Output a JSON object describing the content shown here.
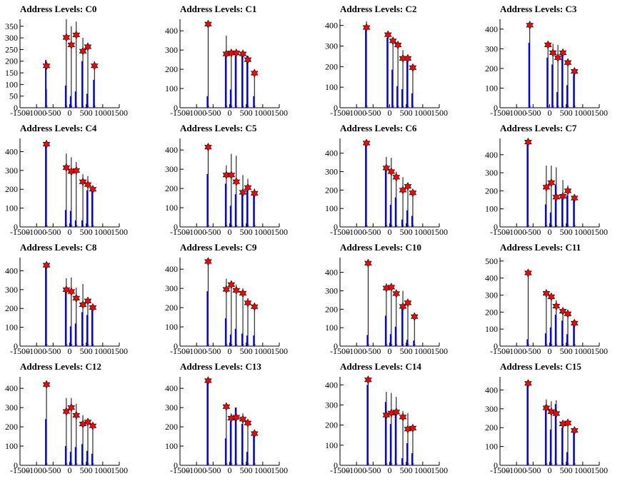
{
  "figure": {
    "x_ticks": [
      "-1500",
      "-1000",
      "-500",
      "0",
      "500",
      "1000",
      "1500"
    ],
    "colors": {
      "black_bars": "#000000",
      "blue_bars": "#0000ff",
      "marker": "#ff0000"
    }
  },
  "chart_data": [
    {
      "type": "bar",
      "title": "Address Levels: C0",
      "xlim": [
        -1500,
        1500
      ],
      "ylim": [
        0,
        380
      ],
      "y_ticks": [
        0,
        50,
        100,
        150,
        200,
        250,
        300,
        350
      ],
      "peaks": [
        -700,
        -100,
        50,
        200,
        400,
        550,
        750
      ],
      "black": [
        80,
        380,
        350,
        370,
        300,
        280,
        200
      ],
      "blue": [
        205,
        95,
        50,
        70,
        200,
        60,
        120
      ],
      "markers": [
        {
          "x": -700,
          "y": 180
        },
        {
          "x": -100,
          "y": 302
        },
        {
          "x": 50,
          "y": 270
        },
        {
          "x": 200,
          "y": 313
        },
        {
          "x": 400,
          "y": 243
        },
        {
          "x": 550,
          "y": 262
        },
        {
          "x": 750,
          "y": 180
        }
      ]
    },
    {
      "type": "bar",
      "title": "Address Levels: C1",
      "xlim": [
        -1500,
        1500
      ],
      "ylim": [
        0,
        460
      ],
      "y_ticks": [
        0,
        100,
        200,
        300,
        400
      ],
      "peaks": [
        -650,
        -100,
        50,
        200,
        400,
        550,
        750
      ],
      "black": [
        440,
        375,
        305,
        300,
        300,
        270,
        180
      ],
      "blue": [
        60,
        280,
        95,
        270,
        285,
        270,
        60
      ],
      "markers": [
        {
          "x": -650,
          "y": 435
        },
        {
          "x": -100,
          "y": 280
        },
        {
          "x": 50,
          "y": 285
        },
        {
          "x": 200,
          "y": 285
        },
        {
          "x": 400,
          "y": 280
        },
        {
          "x": 550,
          "y": 250
        },
        {
          "x": 750,
          "y": 180
        }
      ]
    },
    {
      "type": "bar",
      "title": "Address Levels: C2",
      "xlim": [
        -1500,
        1500
      ],
      "ylim": [
        0,
        430
      ],
      "y_ticks": [
        0,
        100,
        200,
        300,
        400
      ],
      "peaks": [
        -700,
        -50,
        100,
        250,
        400,
        550,
        700
      ],
      "black": [
        420,
        355,
        345,
        310,
        280,
        245,
        200
      ],
      "blue": [
        385,
        340,
        185,
        105,
        90,
        230,
        70
      ],
      "markers": [
        {
          "x": -700,
          "y": 390
        },
        {
          "x": -50,
          "y": 355
        },
        {
          "x": 100,
          "y": 325
        },
        {
          "x": 250,
          "y": 305
        },
        {
          "x": 400,
          "y": 240
        },
        {
          "x": 550,
          "y": 240
        },
        {
          "x": 700,
          "y": 195
        }
      ]
    },
    {
      "type": "bar",
      "title": "Address Levels: C3",
      "xlim": [
        -1500,
        1500
      ],
      "ylim": [
        0,
        450
      ],
      "y_ticks": [
        0,
        100,
        200,
        300,
        400
      ],
      "peaks": [
        -600,
        -50,
        100,
        250,
        400,
        550,
        750
      ],
      "black": [
        435,
        330,
        325,
        320,
        280,
        240,
        195
      ],
      "blue": [
        330,
        255,
        220,
        80,
        270,
        115,
        170
      ],
      "markers": [
        {
          "x": -600,
          "y": 420
        },
        {
          "x": -50,
          "y": 320
        },
        {
          "x": 100,
          "y": 280
        },
        {
          "x": 250,
          "y": 255
        },
        {
          "x": 400,
          "y": 280
        },
        {
          "x": 550,
          "y": 230
        },
        {
          "x": 750,
          "y": 185
        }
      ]
    },
    {
      "type": "bar",
      "title": "Address Levels: C4",
      "xlim": [
        -1500,
        1500
      ],
      "ylim": [
        0,
        470
      ],
      "y_ticks": [
        0,
        100,
        200,
        300,
        400
      ],
      "peaks": [
        -700,
        -100,
        50,
        200,
        400,
        550,
        700
      ],
      "black": [
        450,
        390,
        370,
        345,
        280,
        270,
        200
      ],
      "blue": [
        435,
        90,
        85,
        35,
        35,
        195,
        195
      ],
      "markers": [
        {
          "x": -700,
          "y": 440
        },
        {
          "x": -100,
          "y": 315
        },
        {
          "x": 50,
          "y": 295
        },
        {
          "x": 200,
          "y": 300
        },
        {
          "x": 400,
          "y": 240
        },
        {
          "x": 550,
          "y": 225
        },
        {
          "x": 700,
          "y": 200
        }
      ]
    },
    {
      "type": "bar",
      "title": "Address Levels: C5",
      "xlim": [
        -1500,
        1500
      ],
      "ylim": [
        0,
        460
      ],
      "y_ticks": [
        0,
        100,
        200,
        300,
        400
      ],
      "peaks": [
        -650,
        -100,
        50,
        200,
        400,
        550,
        750
      ],
      "black": [
        420,
        320,
        380,
        370,
        270,
        250,
        200
      ],
      "blue": [
        275,
        225,
        110,
        170,
        175,
        190,
        165
      ],
      "markers": [
        {
          "x": -650,
          "y": 415
        },
        {
          "x": -100,
          "y": 270
        },
        {
          "x": 50,
          "y": 270
        },
        {
          "x": 200,
          "y": 235
        },
        {
          "x": 400,
          "y": 180
        },
        {
          "x": 550,
          "y": 205
        },
        {
          "x": 750,
          "y": 175
        }
      ]
    },
    {
      "type": "bar",
      "title": "Address Levels: C6",
      "xlim": [
        -1500,
        1500
      ],
      "ylim": [
        0,
        480
      ],
      "y_ticks": [
        0,
        100,
        200,
        300,
        400
      ],
      "peaks": [
        -700,
        -100,
        50,
        200,
        400,
        550,
        700
      ],
      "black": [
        460,
        380,
        375,
        300,
        270,
        230,
        190
      ],
      "blue": [
        455,
        330,
        120,
        160,
        40,
        90,
        60
      ],
      "markers": [
        {
          "x": -700,
          "y": 455
        },
        {
          "x": -100,
          "y": 320
        },
        {
          "x": 50,
          "y": 300
        },
        {
          "x": 200,
          "y": 270
        },
        {
          "x": 400,
          "y": 200
        },
        {
          "x": 550,
          "y": 220
        },
        {
          "x": 700,
          "y": 185
        }
      ]
    },
    {
      "type": "bar",
      "title": "Address Levels: C7",
      "xlim": [
        -1500,
        1500
      ],
      "ylim": [
        0,
        490
      ],
      "y_ticks": [
        0,
        100,
        200,
        300,
        400
      ],
      "peaks": [
        -650,
        -100,
        50,
        200,
        400,
        550,
        750
      ],
      "black": [
        480,
        340,
        340,
        330,
        260,
        230,
        175
      ],
      "blue": [
        465,
        125,
        80,
        235,
        175,
        175,
        165
      ],
      "markers": [
        {
          "x": -650,
          "y": 470
        },
        {
          "x": -100,
          "y": 220
        },
        {
          "x": 50,
          "y": 245
        },
        {
          "x": 200,
          "y": 165
        },
        {
          "x": 400,
          "y": 170
        },
        {
          "x": 550,
          "y": 200
        },
        {
          "x": 750,
          "y": 160
        }
      ]
    },
    {
      "type": "bar",
      "title": "Address Levels: C8",
      "xlim": [
        -1500,
        1500
      ],
      "ylim": [
        0,
        470
      ],
      "y_ticks": [
        0,
        100,
        200,
        300,
        400
      ],
      "peaks": [
        -700,
        -100,
        50,
        200,
        400,
        550,
        700
      ],
      "black": [
        440,
        360,
        365,
        310,
        330,
        260,
        210
      ],
      "blue": [
        430,
        300,
        105,
        120,
        180,
        165,
        210
      ],
      "markers": [
        {
          "x": -700,
          "y": 430
        },
        {
          "x": -100,
          "y": 300
        },
        {
          "x": 50,
          "y": 290
        },
        {
          "x": 200,
          "y": 255
        },
        {
          "x": 400,
          "y": 220
        },
        {
          "x": 550,
          "y": 240
        },
        {
          "x": 700,
          "y": 205
        }
      ]
    },
    {
      "type": "bar",
      "title": "Address Levels: C9",
      "xlim": [
        -1500,
        1500
      ],
      "ylim": [
        0,
        460
      ],
      "y_ticks": [
        0,
        100,
        200,
        300,
        400
      ],
      "peaks": [
        -650,
        -100,
        50,
        200,
        400,
        550,
        750
      ],
      "black": [
        440,
        350,
        340,
        320,
        300,
        250,
        220
      ],
      "blue": [
        285,
        145,
        60,
        90,
        65,
        55,
        55
      ],
      "markers": [
        {
          "x": -650,
          "y": 440
        },
        {
          "x": -100,
          "y": 295
        },
        {
          "x": 50,
          "y": 320
        },
        {
          "x": 200,
          "y": 290
        },
        {
          "x": 400,
          "y": 275
        },
        {
          "x": 550,
          "y": 225
        },
        {
          "x": 750,
          "y": 205
        }
      ]
    },
    {
      "type": "bar",
      "title": "Address Levels: C10",
      "xlim": [
        -1500,
        1500
      ],
      "ylim": [
        0,
        480
      ],
      "y_ticks": [
        0,
        100,
        200,
        300,
        400
      ],
      "peaks": [
        -650,
        -100,
        50,
        200,
        400,
        550,
        750
      ],
      "black": [
        460,
        340,
        330,
        300,
        300,
        250,
        170
      ],
      "blue": [
        60,
        165,
        65,
        105,
        210,
        35,
        30
      ],
      "markers": [
        {
          "x": -650,
          "y": 450
        },
        {
          "x": -100,
          "y": 315
        },
        {
          "x": 50,
          "y": 320
        },
        {
          "x": 200,
          "y": 285
        },
        {
          "x": 400,
          "y": 215
        },
        {
          "x": 550,
          "y": 235
        },
        {
          "x": 750,
          "y": 160
        }
      ]
    },
    {
      "type": "bar",
      "title": "Address Levels: C11",
      "xlim": [
        -1500,
        1500
      ],
      "ylim": [
        0,
        520
      ],
      "y_ticks": [
        0,
        100,
        200,
        300,
        400,
        500
      ],
      "peaks": [
        -650,
        -100,
        50,
        200,
        400,
        550,
        750
      ],
      "black": [
        450,
        330,
        300,
        270,
        210,
        200,
        155
      ],
      "blue": [
        40,
        75,
        110,
        185,
        150,
        70,
        150
      ],
      "markers": [
        {
          "x": -650,
          "y": 430
        },
        {
          "x": -100,
          "y": 310
        },
        {
          "x": 50,
          "y": 290
        },
        {
          "x": 200,
          "y": 235
        },
        {
          "x": 400,
          "y": 205
        },
        {
          "x": 550,
          "y": 190
        },
        {
          "x": 750,
          "y": 135
        }
      ]
    },
    {
      "type": "bar",
      "title": "Address Levels: C12",
      "xlim": [
        -1500,
        1500
      ],
      "ylim": [
        0,
        460
      ],
      "y_ticks": [
        0,
        100,
        200,
        300,
        400
      ],
      "peaks": [
        -700,
        -100,
        50,
        200,
        400,
        550,
        700
      ],
      "black": [
        440,
        350,
        350,
        320,
        260,
        240,
        210
      ],
      "blue": [
        240,
        100,
        70,
        95,
        110,
        75,
        60
      ],
      "markers": [
        {
          "x": -700,
          "y": 420
        },
        {
          "x": -100,
          "y": 280
        },
        {
          "x": 50,
          "y": 300
        },
        {
          "x": 200,
          "y": 260
        },
        {
          "x": 400,
          "y": 215
        },
        {
          "x": 550,
          "y": 225
        },
        {
          "x": 700,
          "y": 205
        }
      ]
    },
    {
      "type": "bar",
      "title": "Address Levels: C13",
      "xlim": [
        -1500,
        1500
      ],
      "ylim": [
        0,
        460
      ],
      "y_ticks": [
        0,
        100,
        200,
        300,
        400
      ],
      "peaks": [
        -650,
        -100,
        50,
        200,
        400,
        550,
        750
      ],
      "black": [
        450,
        320,
        270,
        300,
        270,
        230,
        170
      ],
      "blue": [
        445,
        140,
        230,
        300,
        215,
        70,
        160
      ],
      "markers": [
        {
          "x": -650,
          "y": 440
        },
        {
          "x": -100,
          "y": 305
        },
        {
          "x": 50,
          "y": 245
        },
        {
          "x": 200,
          "y": 250
        },
        {
          "x": 400,
          "y": 240
        },
        {
          "x": 550,
          "y": 220
        },
        {
          "x": 750,
          "y": 165
        }
      ]
    },
    {
      "type": "bar",
      "title": "Address Levels: C14",
      "xlim": [
        -1500,
        1500
      ],
      "ylim": [
        0,
        440
      ],
      "y_ticks": [
        0,
        100,
        200,
        300,
        400
      ],
      "peaks": [
        -650,
        -100,
        50,
        200,
        400,
        550,
        700
      ],
      "black": [
        425,
        365,
        360,
        340,
        270,
        260,
        190
      ],
      "blue": [
        400,
        315,
        205,
        260,
        35,
        110,
        60
      ],
      "markers": [
        {
          "x": -650,
          "y": 425
        },
        {
          "x": -100,
          "y": 250
        },
        {
          "x": 50,
          "y": 260
        },
        {
          "x": 200,
          "y": 265
        },
        {
          "x": 400,
          "y": 240
        },
        {
          "x": 550,
          "y": 180
        },
        {
          "x": 700,
          "y": 185
        }
      ]
    },
    {
      "type": "bar",
      "title": "Address Levels: C15",
      "xlim": [
        -1500,
        1500
      ],
      "ylim": [
        0,
        470
      ],
      "y_ticks": [
        0,
        100,
        200,
        300,
        400
      ],
      "peaks": [
        -650,
        -100,
        50,
        200,
        400,
        550,
        750
      ],
      "black": [
        440,
        350,
        340,
        345,
        230,
        240,
        200
      ],
      "blue": [
        435,
        320,
        190,
        325,
        200,
        70,
        190
      ],
      "markers": [
        {
          "x": -650,
          "y": 435
        },
        {
          "x": -100,
          "y": 305
        },
        {
          "x": 50,
          "y": 285
        },
        {
          "x": 200,
          "y": 275
        },
        {
          "x": 400,
          "y": 220
        },
        {
          "x": 550,
          "y": 225
        },
        {
          "x": 750,
          "y": 185
        }
      ]
    }
  ]
}
